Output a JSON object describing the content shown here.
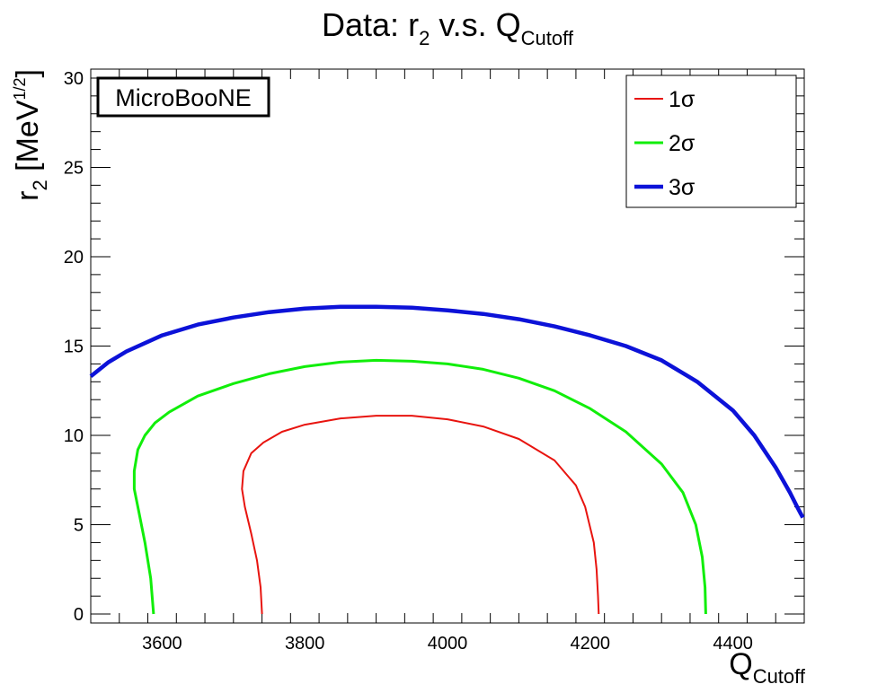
{
  "chart_data": {
    "type": "line",
    "title": {
      "main": "Data: r",
      "sub": "2",
      "rest": " v.s. Q",
      "sub2": "Cutoff"
    },
    "xlabel": {
      "main": "Q",
      "sub": "Cutoff"
    },
    "ylabel": {
      "main": "r",
      "sub": "2",
      "unit_open": " [MeV",
      "sup": "1/2",
      "unit_close": "]"
    },
    "xlim": [
      3500,
      4500
    ],
    "ylim": [
      -0.5,
      30.5
    ],
    "xticks": [
      3600,
      3800,
      4000,
      4200,
      4400
    ],
    "yticks": [
      0,
      5,
      10,
      15,
      20,
      25,
      30
    ],
    "annotation": "MicroBooNE",
    "legend_position": "top-right",
    "grid": false,
    "series": [
      {
        "name": "1σ",
        "label_main": "1",
        "label_sym": "σ",
        "color": "#e8140f",
        "stroke": 2,
        "x": [
          3740,
          3738,
          3733,
          3725,
          3716,
          3712,
          3714,
          3725,
          3742,
          3768,
          3800,
          3850,
          3900,
          3950,
          4000,
          4050,
          4100,
          4150,
          4180,
          4193,
          4205,
          4209,
          4211,
          4212
        ],
        "y": [
          0,
          1.5,
          3,
          4.5,
          6,
          7,
          8,
          9,
          9.6,
          10.2,
          10.6,
          10.95,
          11.1,
          11.1,
          10.9,
          10.5,
          9.8,
          8.6,
          7.2,
          6,
          4,
          2.5,
          1,
          0
        ]
      },
      {
        "name": "2σ",
        "label_main": "2",
        "label_sym": "σ",
        "color": "#11ee0a",
        "stroke": 3,
        "x": [
          3588,
          3584,
          3576,
          3567,
          3561,
          3561,
          3566,
          3576,
          3590,
          3610,
          3650,
          3700,
          3750,
          3800,
          3850,
          3900,
          3950,
          4000,
          4050,
          4100,
          4150,
          4200,
          4250,
          4300,
          4330,
          4348,
          4357,
          4361,
          4362
        ],
        "y": [
          0,
          2,
          4,
          5.8,
          7,
          8,
          9.2,
          10,
          10.7,
          11.3,
          12.2,
          12.9,
          13.45,
          13.85,
          14.1,
          14.2,
          14.15,
          14,
          13.7,
          13.2,
          12.5,
          11.5,
          10.2,
          8.4,
          6.8,
          5,
          3.2,
          1.5,
          0
        ]
      },
      {
        "name": "3σ",
        "label_main": "3",
        "label_sym": "σ",
        "color": "#0c12d8",
        "stroke": 4.5,
        "x": [
          3500,
          3525,
          3550,
          3600,
          3650,
          3700,
          3750,
          3800,
          3850,
          3900,
          3950,
          4000,
          4050,
          4100,
          4150,
          4200,
          4250,
          4300,
          4350,
          4400,
          4430,
          4460,
          4480,
          4490,
          4498
        ],
        "y": [
          13.3,
          14.1,
          14.7,
          15.6,
          16.2,
          16.6,
          16.9,
          17.1,
          17.2,
          17.2,
          17.15,
          17,
          16.8,
          16.5,
          16.1,
          15.6,
          15,
          14.2,
          13,
          11.4,
          10,
          8.2,
          6.8,
          6,
          5.4
        ]
      }
    ]
  }
}
